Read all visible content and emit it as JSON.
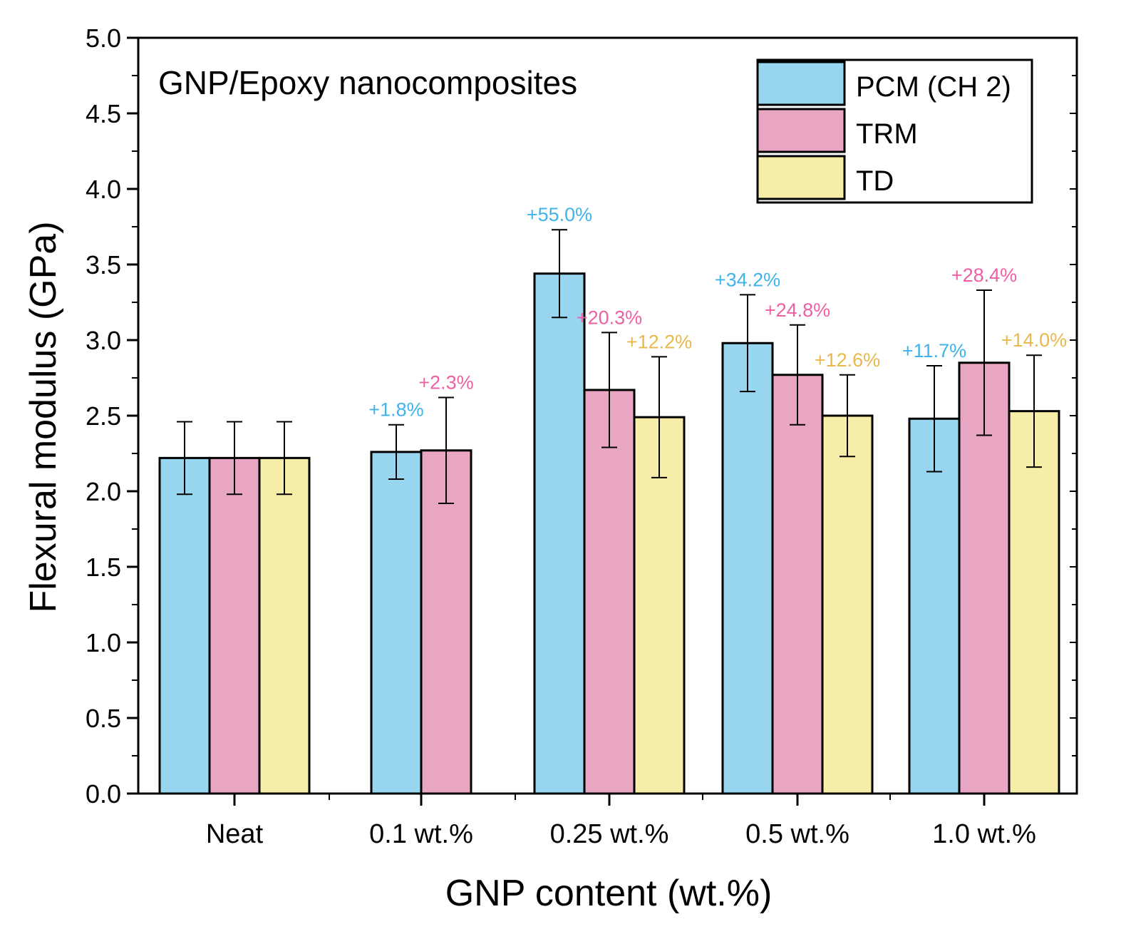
{
  "chart_data": {
    "type": "bar",
    "title": "GNP/Epoxy nanocomposites",
    "xlabel": "GNP content (wt.%)",
    "ylabel": "Flexural modulus (GPa)",
    "ylim": [
      0,
      5
    ],
    "yticks": [
      "0.0",
      "0.5",
      "1.0",
      "1.5",
      "2.0",
      "2.5",
      "3.0",
      "3.5",
      "4.0",
      "4.5",
      "5.0"
    ],
    "categories": [
      "Neat",
      "0.1 wt.%",
      "0.25 wt.%",
      "0.5 wt.%",
      "1.0 wt.%"
    ],
    "legend_position": "top-right",
    "series": [
      {
        "name": "PCM (CH 2)",
        "color": "#98d6f0",
        "label_color": "#3fb3ea",
        "values": [
          2.22,
          2.26,
          3.44,
          2.98,
          2.48
        ],
        "errors": [
          0.24,
          0.18,
          0.29,
          0.32,
          0.35
        ],
        "annotations": [
          "",
          "+1.8%",
          "+55.0%",
          "+34.2%",
          "+11.7%"
        ]
      },
      {
        "name": "TRM",
        "color": "#e9a6c3",
        "label_color": "#ee5fa4",
        "values": [
          2.22,
          2.27,
          2.67,
          2.77,
          2.85
        ],
        "errors": [
          0.24,
          0.35,
          0.38,
          0.33,
          0.48
        ],
        "annotations": [
          "",
          "+2.3%",
          "+20.3%",
          "+24.8%",
          "+28.4%"
        ]
      },
      {
        "name": "TD",
        "color": "#f6eda8",
        "label_color": "#e8b84b",
        "values": [
          2.22,
          null,
          2.49,
          2.5,
          2.53
        ],
        "errors": [
          0.24,
          null,
          0.4,
          0.27,
          0.37
        ],
        "annotations": [
          "",
          "",
          "+12.2%",
          "+12.6%",
          "+14.0%"
        ]
      }
    ]
  }
}
